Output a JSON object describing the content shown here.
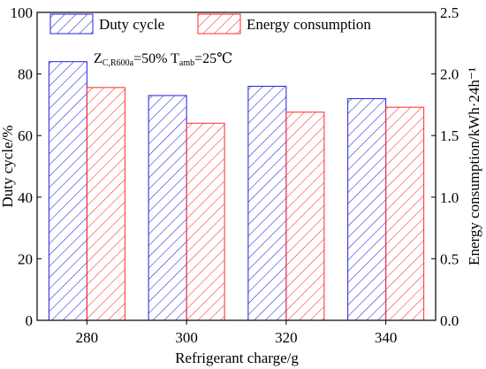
{
  "chart_data": {
    "type": "bar",
    "categories": [
      "280",
      "300",
      "320",
      "340"
    ],
    "series": [
      {
        "name": "Duty cycle",
        "axis": "left",
        "values": [
          84,
          73,
          76,
          72
        ],
        "color": "#2020e0",
        "pattern": "diagonal-hatch"
      },
      {
        "name": "Energy consumption",
        "axis": "right",
        "values": [
          1.89,
          1.6,
          1.69,
          1.73
        ],
        "color": "#ff2a2a",
        "pattern": "diagonal-hatch"
      }
    ],
    "xlabel": "Refrigerant charge/g",
    "ylabel_left": "Duty cycle/%",
    "ylabel_right": "Energy consumption/kWh·24h⁻¹",
    "ylim_left": [
      0,
      100
    ],
    "ylim_right": [
      0,
      2.5
    ],
    "yticks_left": [
      "0",
      "20",
      "40",
      "60",
      "80",
      "100"
    ],
    "yticks_right": [
      "0.0",
      "0.5",
      "1.0",
      "1.5",
      "2.0",
      "2.5"
    ],
    "annotation": {
      "part1": "Z",
      "part1_sub": "C,R600a",
      "part2": "=50% T",
      "part2_sub": "amb",
      "part3": "=25℃"
    },
    "legend": {
      "placement": "top",
      "entries": [
        "Duty cycle",
        "Energy consumption"
      ]
    },
    "grid": false
  }
}
